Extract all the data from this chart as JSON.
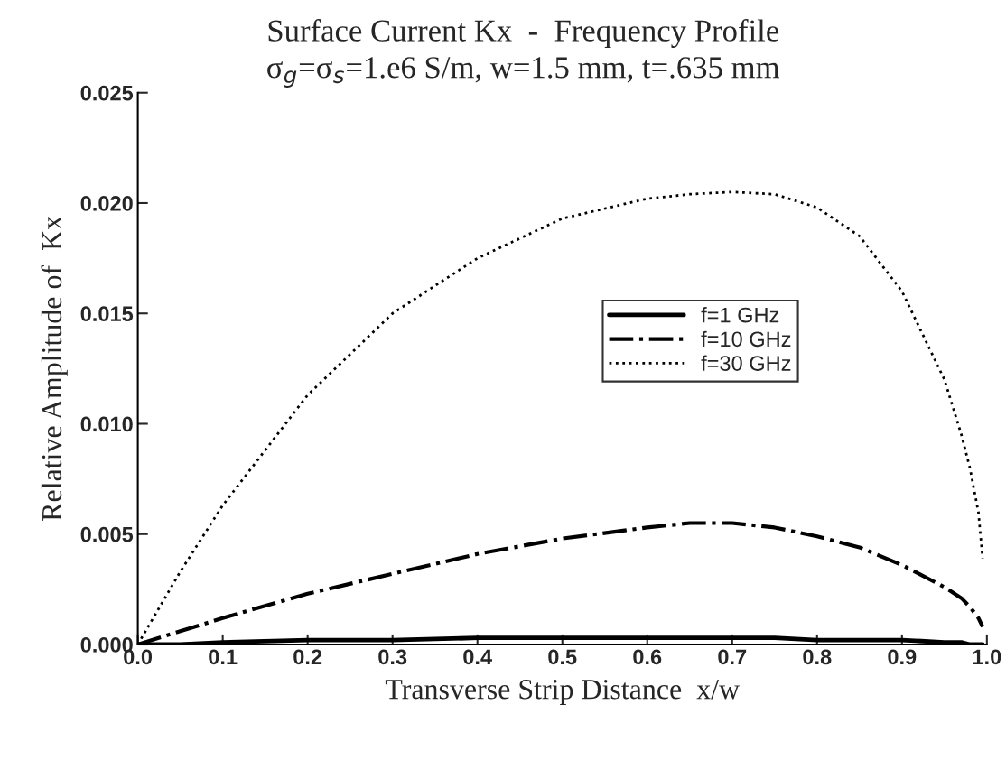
{
  "chart_data": {
    "type": "line",
    "title": "Surface Current Kx  -  Frequency Profile",
    "subtitle": "σ$_{g}$=σ$_{s}$=1.e6 S/m, w=1.5 mm, t=.635 mm",
    "xlabel": "Transverse Strip Distance  x/w",
    "ylabel": "Relative Amplitude of  Kx",
    "x": [
      0,
      0.05,
      0.1,
      0.2,
      0.3,
      0.4,
      0.5,
      0.6,
      0.65,
      0.7,
      0.75,
      0.8,
      0.85,
      0.9,
      0.95,
      0.97,
      0.98,
      0.99,
      0.995
    ],
    "series": [
      {
        "name": "f=1 GHz",
        "color": "#000000",
        "line_style": "solid",
        "values": [
          0,
          0.0,
          0.0001,
          0.0002,
          0.0002,
          0.0003,
          0.0003,
          0.0003,
          0.0003,
          0.0003,
          0.0003,
          0.0002,
          0.0002,
          0.0002,
          0.0001,
          0.0001,
          0.0,
          0.0,
          0.0
        ]
      },
      {
        "name": "f=10 GHz",
        "color": "#000000",
        "line_style": "dashdot",
        "values": [
          0,
          0.0006,
          0.0012,
          0.0023,
          0.0032,
          0.0041,
          0.0048,
          0.0053,
          0.0055,
          0.0055,
          0.0053,
          0.0049,
          0.0044,
          0.0036,
          0.0026,
          0.0021,
          0.0017,
          0.0012,
          0.0008
        ]
      },
      {
        "name": "f=30 GHz",
        "color": "#000000",
        "line_style": "dotted",
        "values": [
          0,
          0.0033,
          0.0063,
          0.0113,
          0.015,
          0.0175,
          0.0193,
          0.0202,
          0.0204,
          0.0205,
          0.0204,
          0.0198,
          0.0185,
          0.016,
          0.012,
          0.0095,
          0.008,
          0.006,
          0.0039
        ]
      }
    ],
    "xlim": [
      0,
      1.0
    ],
    "xticks": [
      {
        "value": 0,
        "label": "0.0"
      },
      0.1,
      0.2,
      0.3,
      0.4,
      0.5,
      0.6,
      0.7,
      0.8,
      0.9,
      {
        "value": 1.0,
        "label": "1.0"
      }
    ],
    "ylim": [
      0,
      0.025
    ],
    "yticks": [
      {
        "value": 0,
        "label": "0.000"
      },
      {
        "value": 0.005,
        "label": "0.005"
      },
      {
        "value": 0.01,
        "label": "0.010"
      },
      {
        "value": 0.015,
        "label": "0.015"
      },
      {
        "value": 0.02,
        "label": "0.020"
      },
      {
        "value": 0.025,
        "label": "0.025"
      }
    ],
    "grid": false,
    "legend": "center right"
  }
}
